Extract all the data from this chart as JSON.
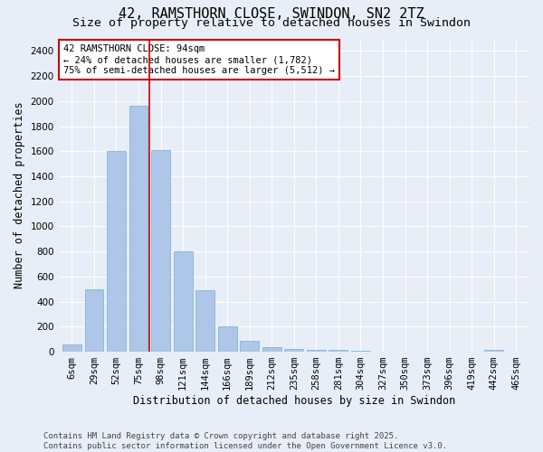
{
  "title": "42, RAMSTHORN CLOSE, SWINDON, SN2 2TZ",
  "subtitle": "Size of property relative to detached houses in Swindon",
  "xlabel": "Distribution of detached houses by size in Swindon",
  "ylabel": "Number of detached properties",
  "categories": [
    "6sqm",
    "29sqm",
    "52sqm",
    "75sqm",
    "98sqm",
    "121sqm",
    "144sqm",
    "166sqm",
    "189sqm",
    "212sqm",
    "235sqm",
    "258sqm",
    "281sqm",
    "304sqm",
    "327sqm",
    "350sqm",
    "373sqm",
    "396sqm",
    "419sqm",
    "442sqm",
    "465sqm"
  ],
  "values": [
    55,
    500,
    1600,
    1960,
    1610,
    800,
    490,
    200,
    90,
    40,
    25,
    18,
    12,
    8,
    0,
    0,
    0,
    0,
    0,
    15,
    0
  ],
  "bar_color": "#aec6e8",
  "bar_edge_color": "#7aafd4",
  "vline_color": "#cc0000",
  "vline_pos": 3.5,
  "annotation_text": "42 RAMSTHORN CLOSE: 94sqm\n← 24% of detached houses are smaller (1,782)\n75% of semi-detached houses are larger (5,512) →",
  "annotation_box_color": "#ffffff",
  "annotation_box_edge": "#cc0000",
  "ylim": [
    0,
    2500
  ],
  "yticks": [
    0,
    200,
    400,
    600,
    800,
    1000,
    1200,
    1400,
    1600,
    1800,
    2000,
    2200,
    2400
  ],
  "background_color": "#e8eef8",
  "grid_color": "#ffffff",
  "footer": "Contains HM Land Registry data © Crown copyright and database right 2025.\nContains public sector information licensed under the Open Government Licence v3.0.",
  "title_fontsize": 11,
  "subtitle_fontsize": 9.5,
  "axis_label_fontsize": 8.5,
  "tick_fontsize": 7.5,
  "annotation_fontsize": 7.5,
  "footer_fontsize": 6.5
}
